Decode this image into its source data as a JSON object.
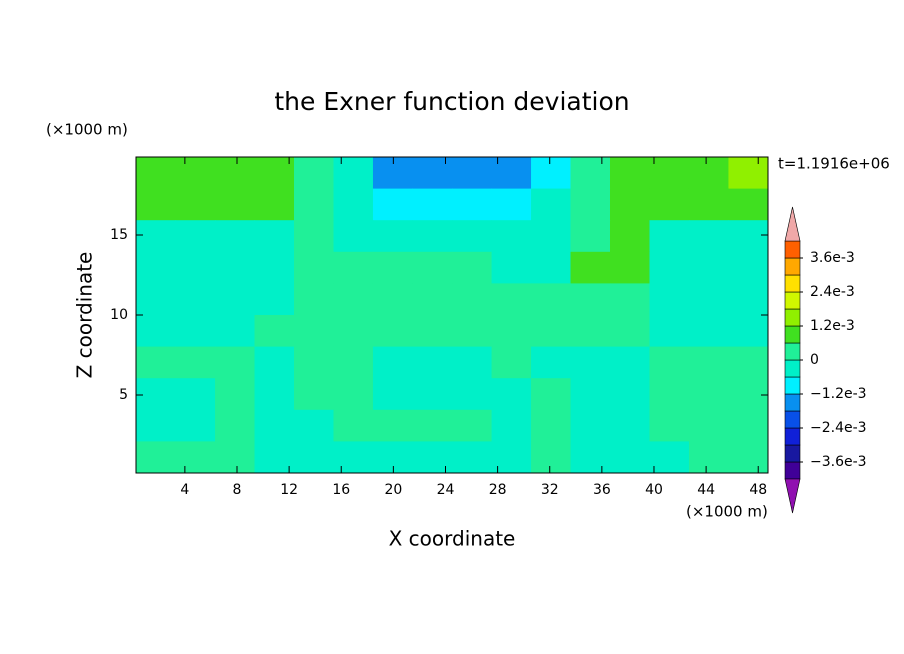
{
  "chart_data": {
    "type": "contour",
    "title": "the Exner function deviation",
    "x_label": "X coordinate",
    "y_label": "Z coordinate",
    "x_unit": "(×1000 m)",
    "y_unit": "(×1000 m)",
    "time_label": "t=1.1916e+06",
    "xlim": [
      0.25,
      48.75
    ],
    "ylim": [
      0.125,
      19.875
    ],
    "xticks": [
      4,
      8,
      12,
      16,
      20,
      24,
      28,
      32,
      36,
      40,
      44,
      48
    ],
    "yticks": [
      5,
      10,
      15
    ],
    "x": [
      1.77,
      4.8,
      7.83,
      10.86,
      13.89,
      16.92,
      19.95,
      22.98,
      26.02,
      29.05,
      32.08,
      35.11,
      38.14,
      41.17,
      44.2,
      47.23
    ],
    "y": [
      18.89,
      16.91,
      14.94,
      12.96,
      10.99,
      9.01,
      7.04,
      5.06,
      3.09,
      1.11
    ],
    "z": [
      [
        0.0009,
        0.0009,
        0.0009,
        0.0009,
        0.0003,
        -0.0003,
        -0.0015,
        -0.0015,
        -0.0015,
        -0.0015,
        -0.0009,
        0.0003,
        0.0009,
        0.0009,
        0.0009,
        0.0015
      ],
      [
        0.0009,
        0.0009,
        0.0009,
        0.0009,
        0.0003,
        -0.0003,
        -0.0009,
        -0.0009,
        -0.0009,
        -0.0009,
        -0.0003,
        0.0003,
        0.0009,
        0.0009,
        0.0009,
        0.0009
      ],
      [
        -0.0003,
        -0.0003,
        -0.0003,
        -0.0003,
        0.0003,
        -0.0003,
        -0.0003,
        -0.0003,
        -0.0003,
        -0.0003,
        -0.0003,
        0.0003,
        0.0009,
        -0.0003,
        -0.0003,
        -0.0003
      ],
      [
        -0.0003,
        -0.0003,
        -0.0003,
        -0.0003,
        0.0003,
        0.0003,
        0.0003,
        0.0003,
        0.0003,
        -0.0003,
        -0.0003,
        0.0009,
        0.0009,
        -0.0003,
        -0.0003,
        -0.0003
      ],
      [
        -0.0003,
        -0.0003,
        -0.0003,
        -0.0003,
        0.0003,
        0.0003,
        0.0003,
        0.0003,
        0.0003,
        0.0003,
        0.0003,
        0.0003,
        0.0003,
        -0.0003,
        -0.0003,
        -0.0003
      ],
      [
        -0.0003,
        -0.0003,
        -0.0003,
        0.0003,
        0.0003,
        0.0003,
        0.0003,
        0.0003,
        0.0003,
        0.0003,
        0.0003,
        0.0003,
        0.0003,
        -0.0003,
        -0.0003,
        -0.0003
      ],
      [
        0.0003,
        0.0003,
        0.0003,
        -0.0003,
        0.0003,
        0.0003,
        -0.0003,
        -0.0003,
        -0.0003,
        0.0003,
        -0.0003,
        -0.0003,
        -0.0003,
        0.0003,
        0.0003,
        0.0003
      ],
      [
        -0.0003,
        -0.0003,
        0.0003,
        -0.0003,
        0.0003,
        0.0003,
        -0.0003,
        -0.0003,
        -0.0003,
        -0.0003,
        0.0003,
        -0.0003,
        -0.0003,
        0.0003,
        0.0003,
        0.0003
      ],
      [
        -0.0003,
        -0.0003,
        0.0003,
        -0.0003,
        -0.0003,
        0.0003,
        0.0003,
        0.0003,
        0.0003,
        -0.0003,
        0.0003,
        -0.0003,
        -0.0003,
        0.0003,
        0.0003,
        0.0003
      ],
      [
        0.0003,
        0.0003,
        0.0003,
        -0.0003,
        -0.0003,
        -0.0003,
        -0.0003,
        -0.0003,
        -0.0003,
        -0.0003,
        0.0003,
        -0.0003,
        -0.0003,
        -0.0003,
        0.0003,
        0.0003
      ]
    ],
    "levels": [
      -0.0042,
      -0.0036,
      -0.003,
      -0.0024,
      -0.0018,
      -0.0012,
      -0.0006,
      0,
      0.0006,
      0.0012,
      0.0018,
      0.0024,
      0.003,
      0.0036,
      0.0042
    ],
    "colors": [
      "#9010b0",
      "#400098",
      "#1818a0",
      "#1020d8",
      "#0850e8",
      "#0890f0",
      "#00f0ff",
      "#00f0c8",
      "#20f098",
      "#40e020",
      "#90f000",
      "#d0f800",
      "#ffe000",
      "#ffa800",
      "#ff6000",
      "#ff2000",
      "#f0a8a8"
    ],
    "colorbar_ticks": [
      {
        "value": 0.0036,
        "label": "3.6e-3"
      },
      {
        "value": 0.0024,
        "label": "2.4e-3"
      },
      {
        "value": 0.0012,
        "label": "1.2e-3"
      },
      0,
      {
        "value": -0.0012,
        "label": "−1.2e-3"
      },
      {
        "value": -0.0024,
        "label": "−2.4e-3"
      },
      {
        "value": -0.0036,
        "label": "−3.6e-3"
      }
    ]
  }
}
